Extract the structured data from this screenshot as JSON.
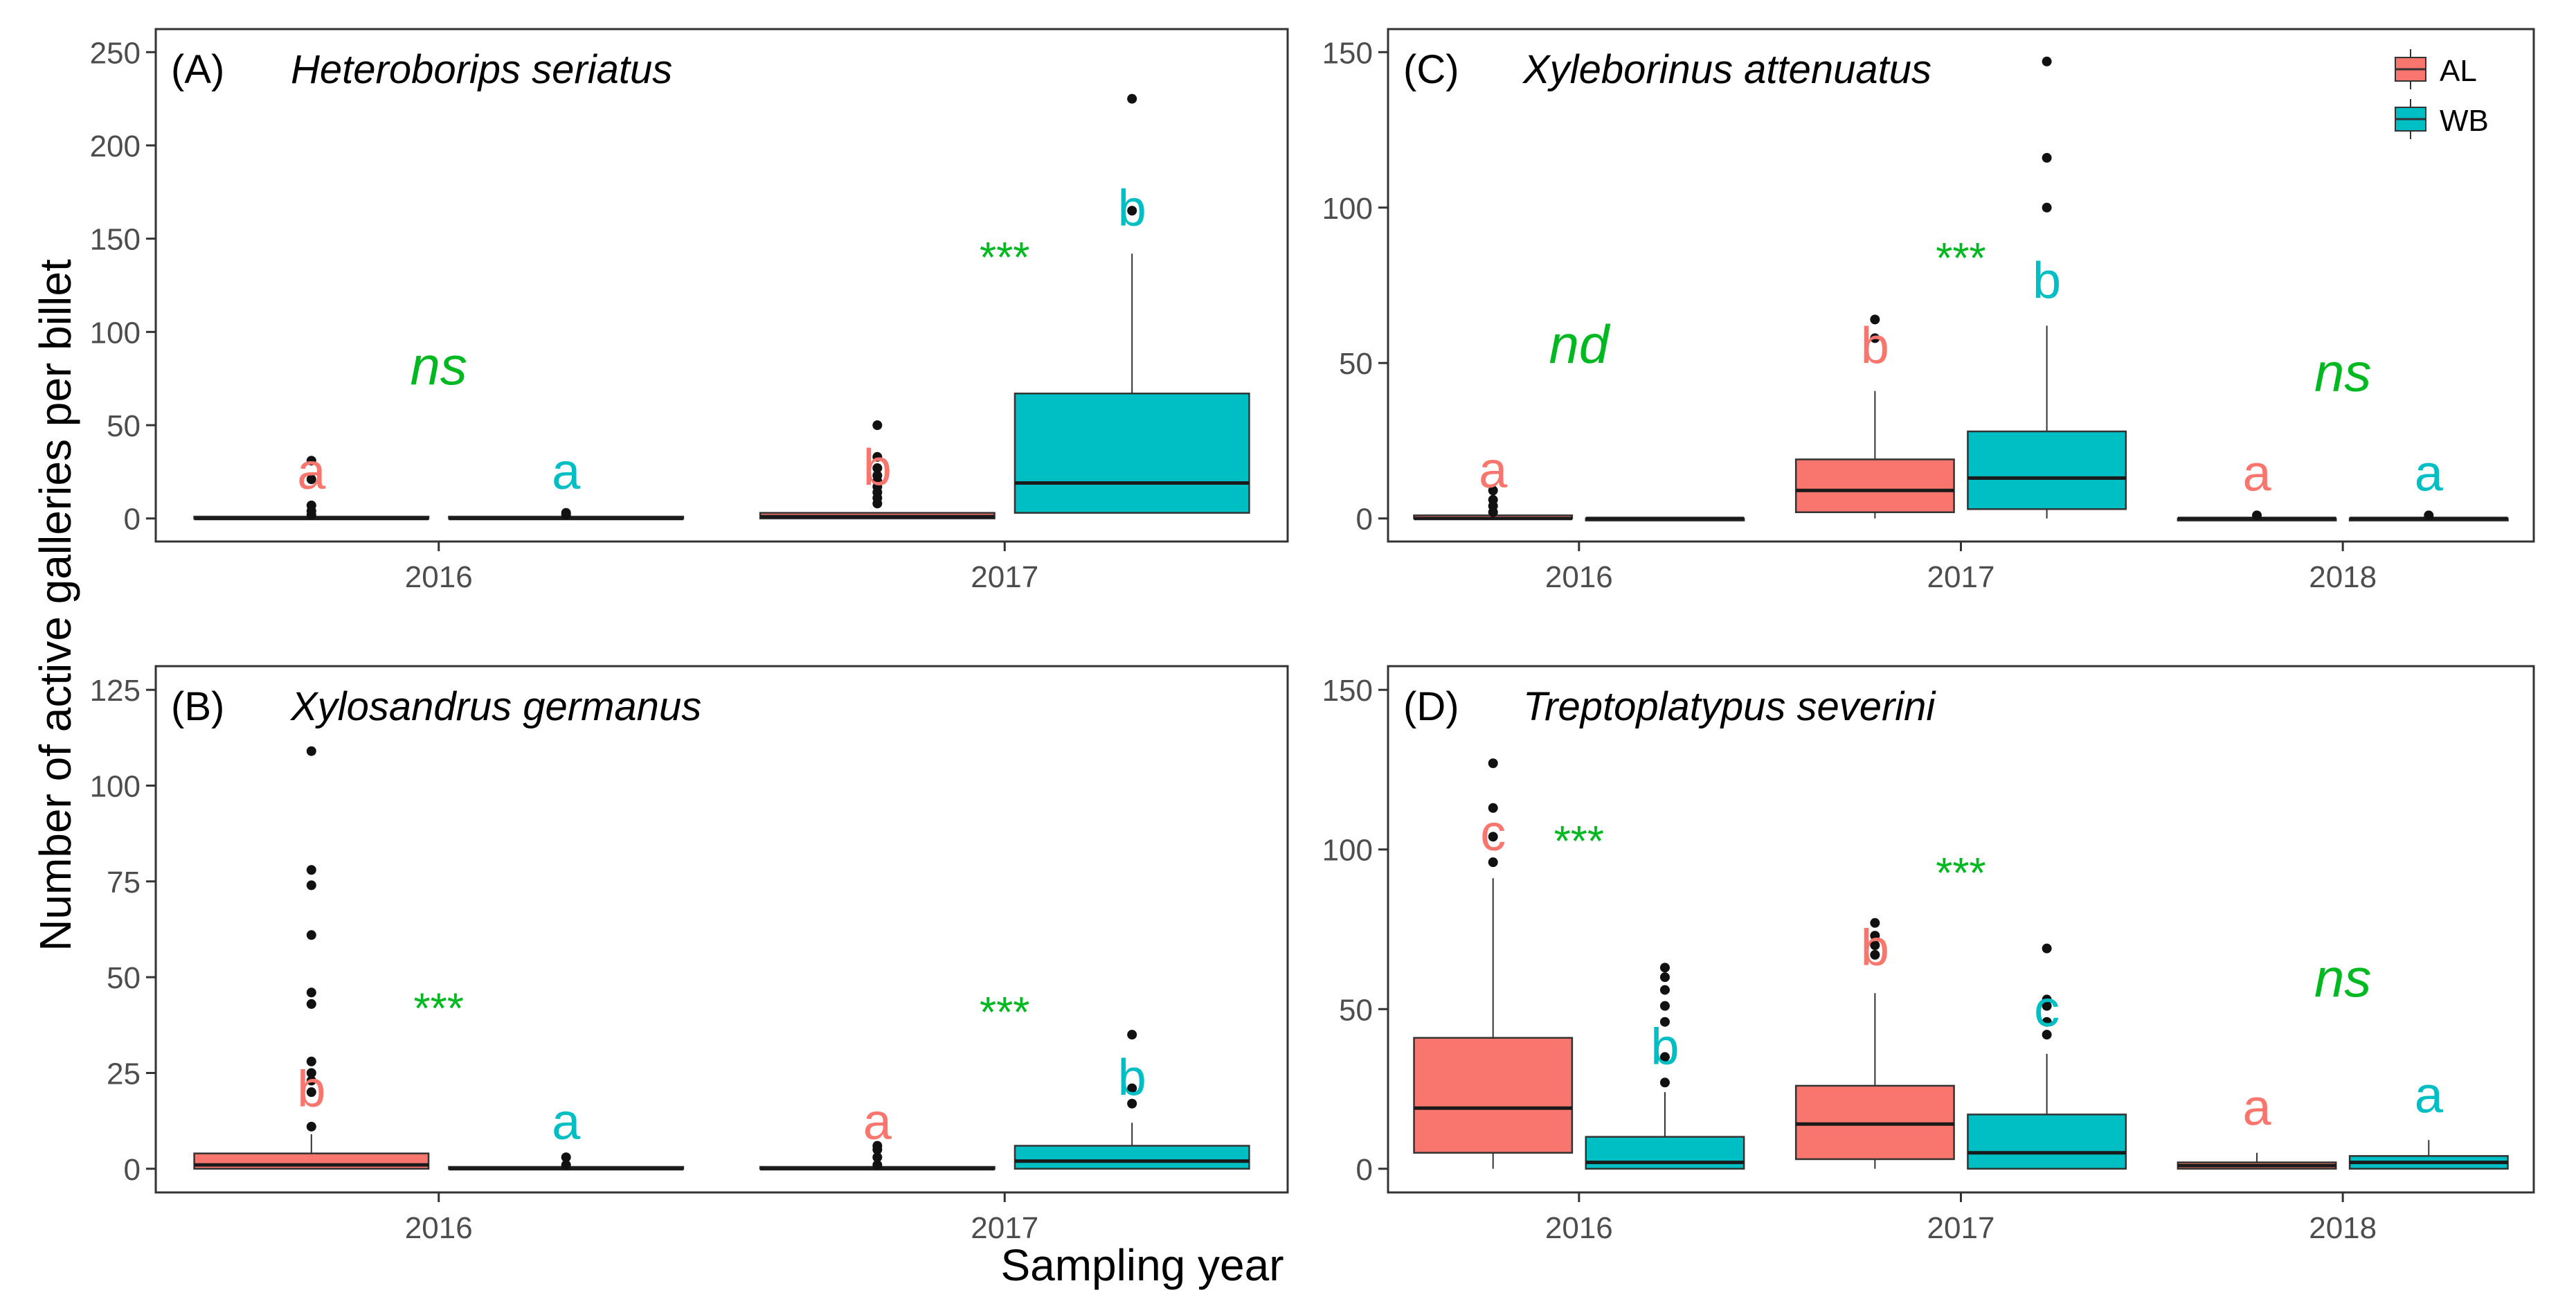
{
  "figure": {
    "y_label": "Number of active galleries per billet",
    "x_label": "Sampling year",
    "legend": {
      "items": [
        {
          "name": "AL",
          "color": "#F8766D"
        },
        {
          "name": "WB",
          "color": "#00BFC4"
        }
      ]
    }
  },
  "colors": {
    "AL": "#F8766D",
    "WB": "#00BFC4",
    "significance": "#00B81F",
    "panel_border": "#333333"
  },
  "chart_data": [
    {
      "type": "box",
      "panel": "(A)",
      "species": "Heteroborips seriatus",
      "categories": [
        "2016",
        "2017"
      ],
      "ylim": [
        0,
        250
      ],
      "yticks": [
        0,
        50,
        100,
        150,
        200,
        250
      ],
      "boxes": [
        {
          "year": "2016",
          "group": "AL",
          "q1": 0,
          "median": 0,
          "q3": 1,
          "whisker_low": 0,
          "whisker_high": 1,
          "outliers": [
            2,
            4,
            7,
            21,
            31
          ],
          "letter": "a"
        },
        {
          "year": "2016",
          "group": "WB",
          "q1": 0,
          "median": 0,
          "q3": 1,
          "whisker_low": 0,
          "whisker_high": 1,
          "outliers": [
            2,
            3
          ],
          "letter": "a"
        },
        {
          "year": "2017",
          "group": "AL",
          "q1": 0,
          "median": 1,
          "q3": 3,
          "whisker_low": 0,
          "whisker_high": 3,
          "outliers": [
            8,
            11,
            14,
            17,
            20,
            23,
            27,
            33,
            50
          ],
          "letter": "b"
        },
        {
          "year": "2017",
          "group": "WB",
          "q1": 3,
          "median": 19,
          "q3": 67,
          "whisker_low": 3,
          "whisker_high": 142,
          "outliers": [
            165,
            225
          ],
          "letter": "b"
        }
      ],
      "significance": [
        {
          "year": "2016",
          "label": "ns",
          "y": 72
        },
        {
          "year": "2017",
          "label": "***",
          "y": 132
        }
      ]
    },
    {
      "type": "box",
      "panel": "(B)",
      "species": "Xylosandrus germanus",
      "categories": [
        "2016",
        "2017"
      ],
      "ylim": [
        0,
        125
      ],
      "yticks": [
        0,
        25,
        50,
        75,
        100,
        125
      ],
      "boxes": [
        {
          "year": "2016",
          "group": "AL",
          "q1": 0,
          "median": 1,
          "q3": 4,
          "whisker_low": 0,
          "whisker_high": 9,
          "outliers": [
            11,
            20,
            23,
            25,
            28,
            43,
            46,
            61,
            74,
            78,
            109
          ],
          "letter": "b"
        },
        {
          "year": "2016",
          "group": "WB",
          "q1": 0,
          "median": 0,
          "q3": 0.5,
          "whisker_low": 0,
          "whisker_high": 0.5,
          "outliers": [
            1,
            3
          ],
          "letter": "a"
        },
        {
          "year": "2017",
          "group": "AL",
          "q1": 0,
          "median": 0,
          "q3": 0.5,
          "whisker_low": 0,
          "whisker_high": 0.5,
          "outliers": [
            1,
            3,
            5,
            6
          ],
          "letter": "a"
        },
        {
          "year": "2017",
          "group": "WB",
          "q1": 0,
          "median": 2,
          "q3": 6,
          "whisker_low": 0,
          "whisker_high": 12,
          "outliers": [
            17,
            21,
            35
          ],
          "letter": "b"
        }
      ],
      "significance": [
        {
          "year": "2016",
          "label": "***",
          "y": 38
        },
        {
          "year": "2017",
          "label": "***",
          "y": 37
        }
      ]
    },
    {
      "type": "box",
      "panel": "(C)",
      "species": "Xyleborinus attenuatus",
      "categories": [
        "2016",
        "2017",
        "2018"
      ],
      "ylim": [
        0,
        150
      ],
      "yticks": [
        0,
        50,
        100,
        150
      ],
      "boxes": [
        {
          "year": "2016",
          "group": "AL",
          "q1": 0,
          "median": 0,
          "q3": 1,
          "whisker_low": 0,
          "whisker_high": 1,
          "outliers": [
            2,
            4,
            6,
            9
          ],
          "letter": "a"
        },
        {
          "year": "2016",
          "group": "WB",
          "q1": 0,
          "median": 0,
          "q3": 0,
          "whisker_low": 0,
          "whisker_high": 0,
          "outliers": [],
          "letter": ""
        },
        {
          "year": "2017",
          "group": "AL",
          "q1": 2,
          "median": 9,
          "q3": 19,
          "whisker_low": 0,
          "whisker_high": 41,
          "outliers": [
            58,
            64
          ],
          "letter": "b"
        },
        {
          "year": "2017",
          "group": "WB",
          "q1": 3,
          "median": 13,
          "q3": 28,
          "whisker_low": 0,
          "whisker_high": 62,
          "outliers": [
            100,
            116,
            147
          ],
          "letter": "b"
        },
        {
          "year": "2018",
          "group": "AL",
          "q1": 0,
          "median": 0,
          "q3": 0,
          "whisker_low": 0,
          "whisker_high": 0,
          "outliers": [
            1
          ],
          "letter": "a"
        },
        {
          "year": "2018",
          "group": "WB",
          "q1": 0,
          "median": 0,
          "q3": 0,
          "whisker_low": 0,
          "whisker_high": 0,
          "outliers": [
            1
          ],
          "letter": "a"
        }
      ],
      "significance": [
        {
          "year": "2016",
          "label": "nd",
          "y": 50
        },
        {
          "year": "2017",
          "label": "***",
          "y": 79
        },
        {
          "year": "2018",
          "label": "ns",
          "y": 41
        }
      ]
    },
    {
      "type": "box",
      "panel": "(D)",
      "species": "Treptoplatypus severini",
      "categories": [
        "2016",
        "2017",
        "2018"
      ],
      "ylim": [
        0,
        150
      ],
      "yticks": [
        0,
        50,
        100,
        150
      ],
      "boxes": [
        {
          "year": "2016",
          "group": "AL",
          "q1": 5,
          "median": 19,
          "q3": 41,
          "whisker_low": 0,
          "whisker_high": 91,
          "outliers": [
            96,
            104,
            113,
            127
          ],
          "letter": "c"
        },
        {
          "year": "2016",
          "group": "WB",
          "q1": 0,
          "median": 2,
          "q3": 10,
          "whisker_low": 0,
          "whisker_high": 24,
          "outliers": [
            27,
            35,
            46,
            51,
            56,
            60,
            63
          ],
          "letter": "b"
        },
        {
          "year": "2017",
          "group": "AL",
          "q1": 3,
          "median": 14,
          "q3": 26,
          "whisker_low": 0,
          "whisker_high": 55,
          "outliers": [
            67,
            70,
            73,
            77
          ],
          "letter": "b"
        },
        {
          "year": "2017",
          "group": "WB",
          "q1": 0,
          "median": 5,
          "q3": 17,
          "whisker_low": 0,
          "whisker_high": 36,
          "outliers": [
            42,
            46,
            51,
            53,
            69
          ],
          "letter": "c"
        },
        {
          "year": "2018",
          "group": "AL",
          "q1": 0,
          "median": 1,
          "q3": 2,
          "whisker_low": 0,
          "whisker_high": 5,
          "outliers": [],
          "letter": "a"
        },
        {
          "year": "2018",
          "group": "WB",
          "q1": 0,
          "median": 2,
          "q3": 4,
          "whisker_low": 0,
          "whisker_high": 9,
          "outliers": [],
          "letter": "a"
        }
      ],
      "significance": [
        {
          "year": "2016",
          "label": "***",
          "y": 98
        },
        {
          "year": "2017",
          "label": "***",
          "y": 88
        },
        {
          "year": "2018",
          "label": "ns",
          "y": 54
        }
      ]
    }
  ]
}
